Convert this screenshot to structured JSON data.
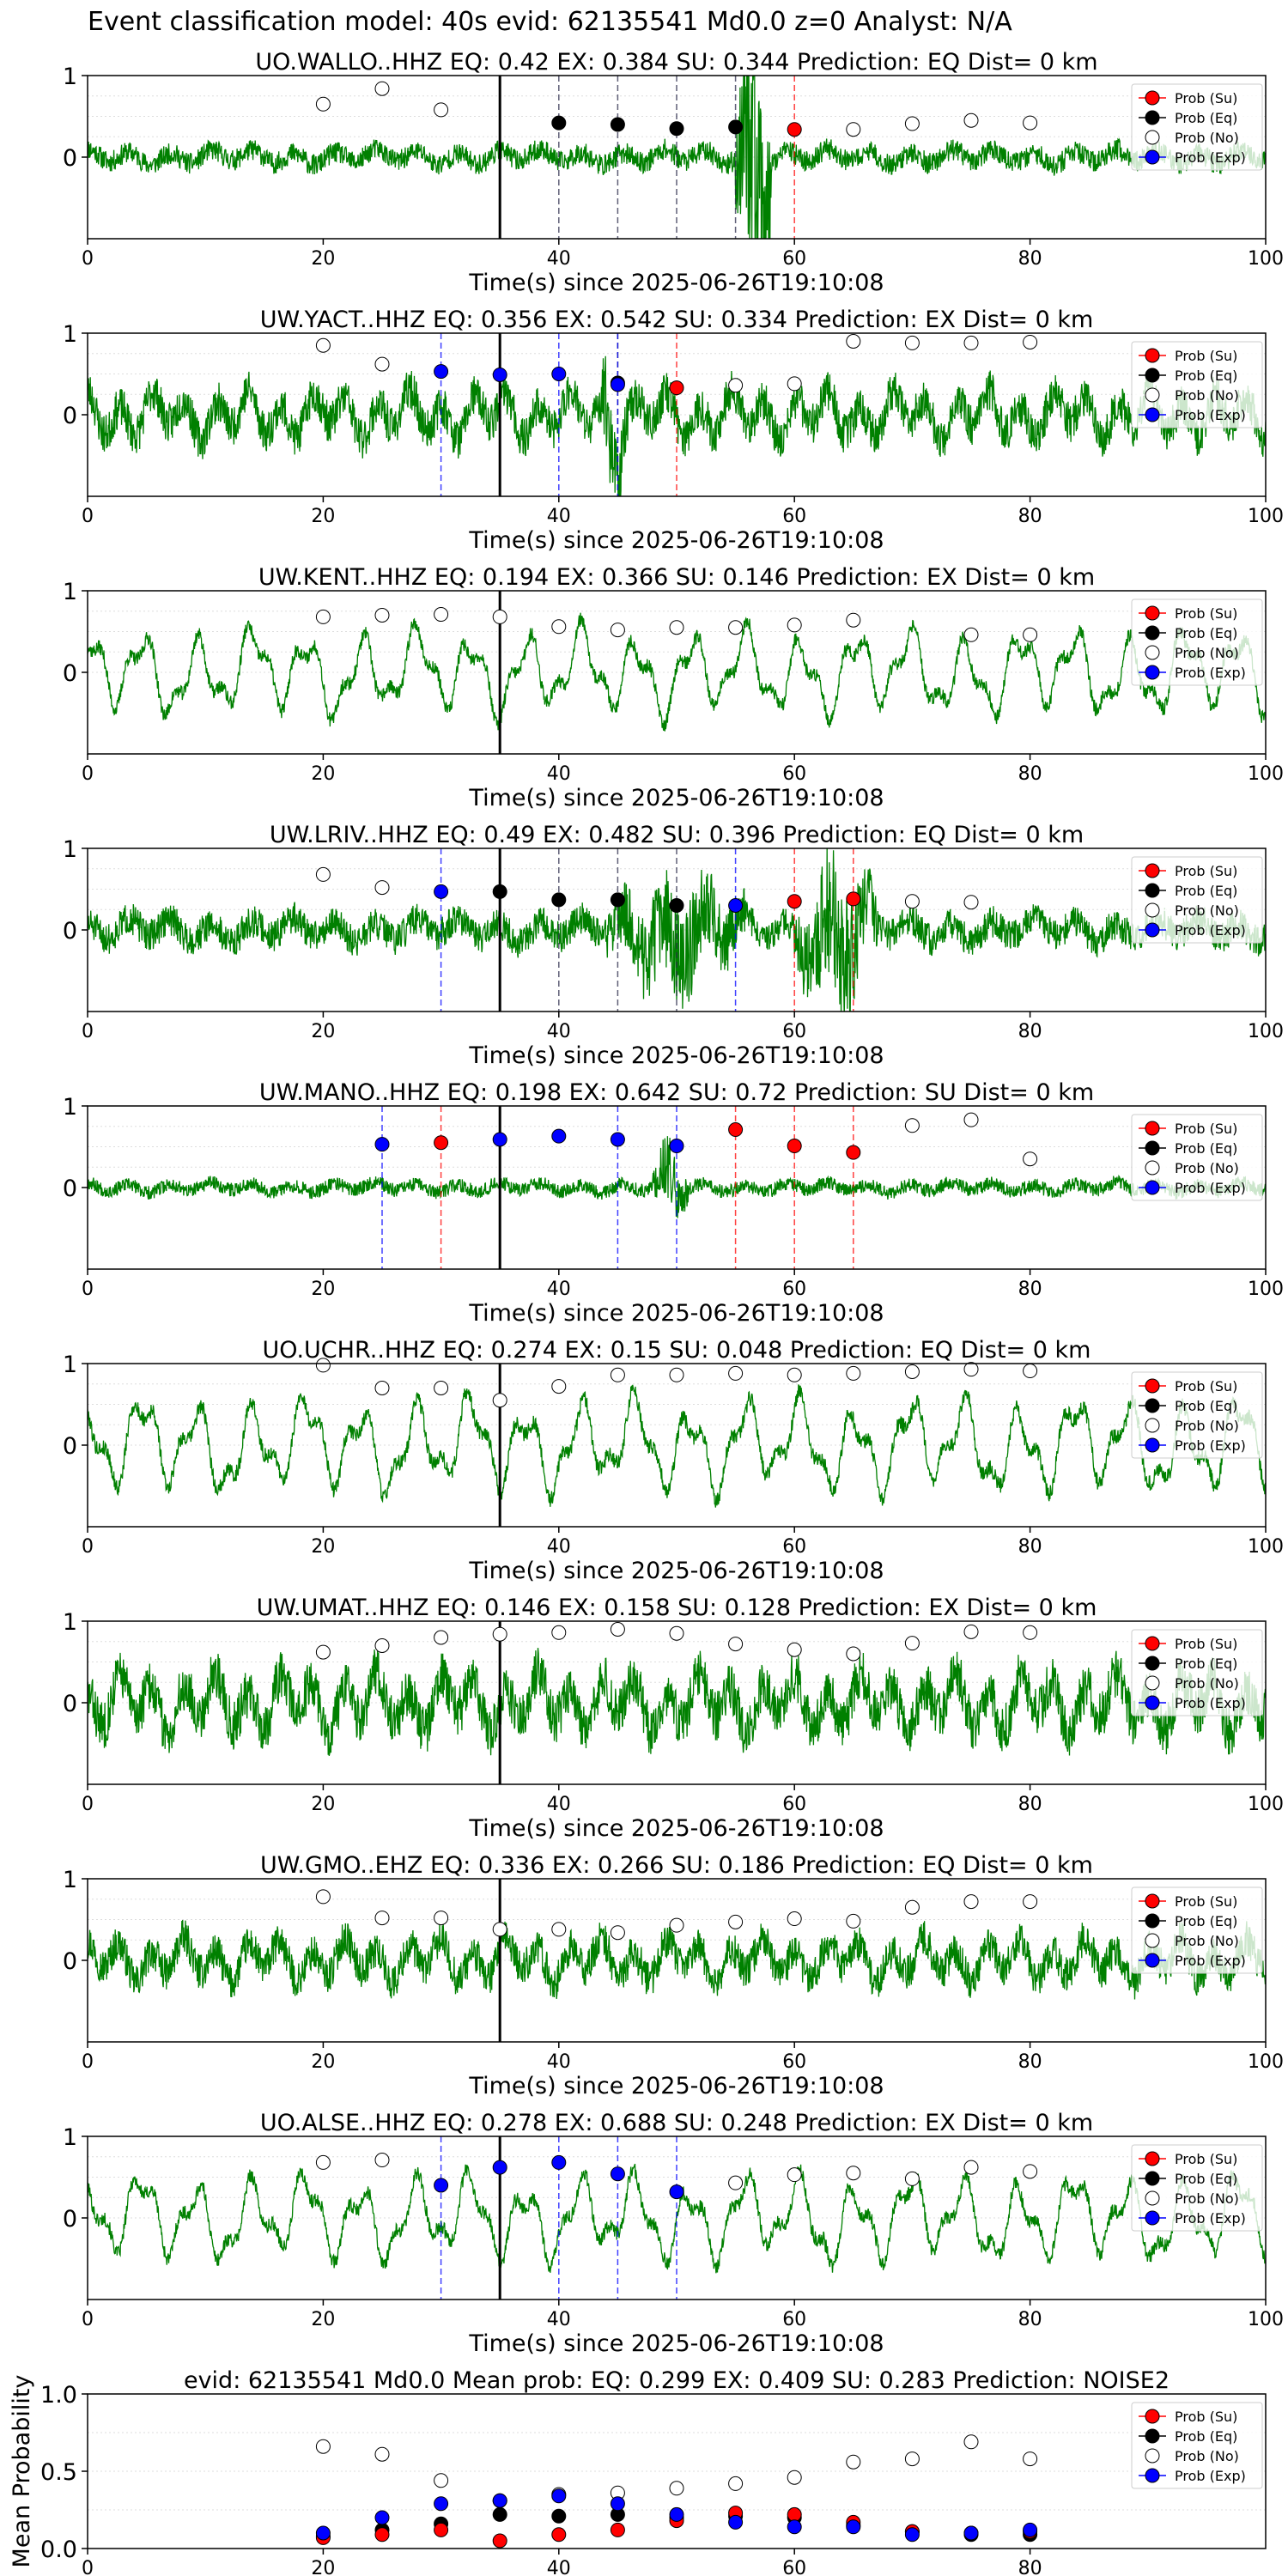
{
  "page": {
    "title": "Event classification model: 40s evid: 62135541 Md0.0 z=0 Analyst: N/A"
  },
  "colors": {
    "waveform": "#008000",
    "su": "#ff0000",
    "eq": "#000000",
    "no": "#ffffff",
    "exp": "#0000ff",
    "origin_line": "#000000",
    "grid": "#dddddd"
  },
  "legend_labels": [
    "Prob (Su)",
    "Prob (Eq)",
    "Prob (No)",
    "Prob (Exp)"
  ],
  "chart_data": [
    {
      "type": "line",
      "title": "UO.WALLO..HHZ   EQ: 0.42  EX: 0.384  SU: 0.344   Prediction: EQ    Dist= 0 km",
      "xlabel": "Time(s) since 2025-06-26T19:10:08",
      "xlim": [
        0,
        100
      ],
      "ylim": [
        -1,
        1
      ],
      "xticks": [
        "0",
        "20",
        "40",
        "60",
        "80",
        "100"
      ],
      "yticks": [
        "0",
        "1"
      ],
      "origin_time": 35,
      "waveform": {
        "style": "impulsive",
        "amp": 0.2,
        "bursts": [
          [
            55,
            58,
            2.5
          ]
        ],
        "seed": 11
      },
      "no": [
        [
          20,
          0.65
        ],
        [
          25,
          0.84
        ],
        [
          30,
          0.58
        ],
        [
          65,
          0.34
        ],
        [
          70,
          0.41
        ],
        [
          75,
          0.45
        ],
        [
          80,
          0.42
        ]
      ],
      "eq": [
        [
          40,
          0.42
        ],
        [
          45,
          0.4
        ],
        [
          50,
          0.35
        ],
        [
          55,
          0.37
        ]
      ],
      "su": [
        [
          60,
          0.34
        ]
      ],
      "exp": [],
      "eq_lines": [
        40,
        45,
        50,
        55
      ],
      "su_lines": [
        60
      ],
      "exp_lines": []
    },
    {
      "type": "line",
      "title": "UW.YACT..HHZ   EQ: 0.356  EX: 0.542  SU: 0.334   Prediction: EX    Dist= 0 km",
      "xlabel": "Time(s) since 2025-06-26T19:10:08",
      "xlim": [
        0,
        100
      ],
      "ylim": [
        -1,
        1
      ],
      "xticks": [
        "0",
        "20",
        "40",
        "60",
        "80",
        "100"
      ],
      "yticks": [
        "0",
        "1"
      ],
      "origin_time": 35,
      "waveform": {
        "style": "noisy",
        "amp": 0.45,
        "bursts": [
          [
            43,
            46,
            1.3
          ]
        ],
        "seed": 23
      },
      "no": [
        [
          20,
          0.85
        ],
        [
          25,
          0.62
        ],
        [
          55,
          0.36
        ],
        [
          60,
          0.38
        ],
        [
          65,
          0.9
        ],
        [
          70,
          0.88
        ],
        [
          75,
          0.88
        ],
        [
          80,
          0.89
        ]
      ],
      "eq": [
        [
          45,
          0.39
        ]
      ],
      "su": [
        [
          50,
          0.33
        ]
      ],
      "exp": [
        [
          30,
          0.53
        ],
        [
          35,
          0.49
        ],
        [
          40,
          0.5
        ],
        [
          45,
          0.37
        ]
      ],
      "eq_lines": [
        45
      ],
      "su_lines": [
        50
      ],
      "exp_lines": [
        30,
        40,
        45
      ]
    },
    {
      "type": "line",
      "title": "UW.KENT..HHZ   EQ: 0.194  EX: 0.366  SU: 0.146   Prediction: EX    Dist= 0 km",
      "xlabel": "Time(s) since 2025-06-26T19:10:08",
      "xlim": [
        0,
        100
      ],
      "ylim": [
        -1,
        1
      ],
      "xticks": [
        "0",
        "20",
        "40",
        "60",
        "80",
        "100"
      ],
      "yticks": [
        "0",
        "1"
      ],
      "origin_time": 35,
      "waveform": {
        "style": "oscillatory",
        "amp": 0.5,
        "bursts": [],
        "seed": 37
      },
      "no": [
        [
          20,
          0.68
        ],
        [
          25,
          0.7
        ],
        [
          30,
          0.71
        ],
        [
          35,
          0.68
        ],
        [
          40,
          0.56
        ],
        [
          45,
          0.52
        ],
        [
          50,
          0.55
        ],
        [
          55,
          0.55
        ],
        [
          60,
          0.58
        ],
        [
          65,
          0.64
        ],
        [
          75,
          0.46
        ],
        [
          80,
          0.46
        ]
      ],
      "eq": [],
      "su": [],
      "exp": [],
      "eq_lines": [],
      "su_lines": [],
      "exp_lines": []
    },
    {
      "type": "line",
      "title": "UW.LRIV..HHZ   EQ: 0.49  EX: 0.482  SU: 0.396   Prediction: EQ    Dist= 0 km",
      "xlabel": "Time(s) since 2025-06-26T19:10:08",
      "xlim": [
        0,
        100
      ],
      "ylim": [
        -1,
        1
      ],
      "xticks": [
        "0",
        "20",
        "40",
        "60",
        "80",
        "100"
      ],
      "yticks": [
        "0",
        "1"
      ],
      "origin_time": 35,
      "waveform": {
        "style": "impulsive",
        "amp": 0.3,
        "bursts": [
          [
            44,
            56,
            1.1
          ],
          [
            60,
            67,
            1.4
          ]
        ],
        "seed": 51
      },
      "no": [
        [
          20,
          0.68
        ],
        [
          25,
          0.52
        ],
        [
          70,
          0.35
        ],
        [
          75,
          0.34
        ]
      ],
      "eq": [
        [
          35,
          0.47
        ],
        [
          40,
          0.37
        ],
        [
          45,
          0.37
        ],
        [
          50,
          0.3
        ]
      ],
      "su": [
        [
          60,
          0.35
        ],
        [
          65,
          0.38
        ]
      ],
      "exp": [
        [
          30,
          0.47
        ],
        [
          55,
          0.3
        ]
      ],
      "eq_lines": [
        40,
        45,
        50
      ],
      "su_lines": [
        60,
        65
      ],
      "exp_lines": [
        30,
        55
      ]
    },
    {
      "type": "line",
      "title": "UW.MANO..HHZ   EQ: 0.198  EX: 0.642  SU: 0.72   Prediction: SU    Dist= 0 km",
      "xlabel": "Time(s) since 2025-06-26T19:10:08",
      "xlim": [
        0,
        100
      ],
      "ylim": [
        -1,
        1
      ],
      "xticks": [
        "0",
        "20",
        "40",
        "60",
        "80",
        "100"
      ],
      "yticks": [
        "0",
        "1"
      ],
      "origin_time": 35,
      "waveform": {
        "style": "impulsive",
        "amp": 0.13,
        "bursts": [
          [
            48,
            51,
            0.7
          ]
        ],
        "seed": 67
      },
      "no": [
        [
          70,
          0.76
        ],
        [
          75,
          0.83
        ],
        [
          80,
          0.35
        ]
      ],
      "eq": [],
      "su": [
        [
          30,
          0.55
        ],
        [
          55,
          0.71
        ],
        [
          60,
          0.51
        ],
        [
          65,
          0.43
        ]
      ],
      "exp": [
        [
          25,
          0.53
        ],
        [
          35,
          0.59
        ],
        [
          40,
          0.63
        ],
        [
          45,
          0.59
        ],
        [
          50,
          0.51
        ]
      ],
      "eq_lines": [],
      "su_lines": [
        30,
        55,
        60,
        65
      ],
      "exp_lines": [
        25,
        45,
        50
      ]
    },
    {
      "type": "line",
      "title": "UO.UCHR..HHZ   EQ: 0.274  EX: 0.15  SU: 0.048   Prediction: EQ    Dist= 0 km",
      "xlabel": "Time(s) since 2025-06-26T19:10:08",
      "xlim": [
        0,
        100
      ],
      "ylim": [
        -1,
        1
      ],
      "xticks": [
        "0",
        "20",
        "40",
        "60",
        "80",
        "100"
      ],
      "yticks": [
        "0",
        "1"
      ],
      "origin_time": 35,
      "waveform": {
        "style": "oscillatory",
        "amp": 0.55,
        "bursts": [],
        "seed": 79
      },
      "no": [
        [
          20,
          0.98
        ],
        [
          25,
          0.7
        ],
        [
          30,
          0.7
        ],
        [
          35,
          0.55
        ],
        [
          40,
          0.72
        ],
        [
          45,
          0.86
        ],
        [
          50,
          0.86
        ],
        [
          55,
          0.88
        ],
        [
          60,
          0.86
        ],
        [
          65,
          0.88
        ],
        [
          70,
          0.9
        ],
        [
          75,
          0.93
        ],
        [
          80,
          0.91
        ]
      ],
      "eq": [],
      "su": [],
      "exp": [],
      "eq_lines": [],
      "su_lines": [],
      "exp_lines": []
    },
    {
      "type": "line",
      "title": "UW.UMAT..HHZ   EQ: 0.146  EX: 0.158  SU: 0.128   Prediction: EX    Dist= 0 km",
      "xlabel": "Time(s) since 2025-06-26T19:10:08",
      "xlim": [
        0,
        100
      ],
      "ylim": [
        -1,
        1
      ],
      "xticks": [
        "0",
        "20",
        "40",
        "60",
        "80",
        "100"
      ],
      "yticks": [
        "0",
        "1"
      ],
      "origin_time": 35,
      "waveform": {
        "style": "noisy",
        "amp": 0.55,
        "bursts": [],
        "seed": 83
      },
      "no": [
        [
          20,
          0.62
        ],
        [
          25,
          0.7
        ],
        [
          30,
          0.8
        ],
        [
          35,
          0.84
        ],
        [
          40,
          0.86
        ],
        [
          45,
          0.9
        ],
        [
          50,
          0.85
        ],
        [
          55,
          0.72
        ],
        [
          60,
          0.65
        ],
        [
          65,
          0.6
        ],
        [
          70,
          0.73
        ],
        [
          75,
          0.87
        ],
        [
          80,
          0.86
        ]
      ],
      "eq": [],
      "su": [],
      "exp": [],
      "eq_lines": [],
      "su_lines": [],
      "exp_lines": []
    },
    {
      "type": "line",
      "title": "UW.GMO..EHZ   EQ: 0.336  EX: 0.266  SU: 0.186   Prediction: EQ    Dist= 0 km",
      "xlabel": "Time(s) since 2025-06-26T19:10:08",
      "xlim": [
        0,
        100
      ],
      "ylim": [
        -1,
        1
      ],
      "xticks": [
        "0",
        "20",
        "40",
        "60",
        "80",
        "100"
      ],
      "yticks": [
        "0",
        "1"
      ],
      "origin_time": 35,
      "waveform": {
        "style": "noisy",
        "amp": 0.4,
        "bursts": [],
        "seed": 97
      },
      "no": [
        [
          20,
          0.78
        ],
        [
          25,
          0.52
        ],
        [
          30,
          0.52
        ],
        [
          35,
          0.38
        ],
        [
          40,
          0.38
        ],
        [
          45,
          0.34
        ],
        [
          50,
          0.43
        ],
        [
          55,
          0.47
        ],
        [
          60,
          0.51
        ],
        [
          65,
          0.48
        ],
        [
          70,
          0.65
        ],
        [
          75,
          0.72
        ],
        [
          80,
          0.72
        ]
      ],
      "eq": [],
      "su": [],
      "exp": [],
      "eq_lines": [],
      "su_lines": [],
      "exp_lines": []
    },
    {
      "type": "line",
      "title": "UO.ALSE..HHZ   EQ: 0.278  EX: 0.688  SU: 0.248   Prediction: EX    Dist= 0 km",
      "xlabel": "Time(s) since 2025-06-26T19:10:08",
      "xlim": [
        0,
        100
      ],
      "ylim": [
        -1,
        1
      ],
      "xticks": [
        "0",
        "20",
        "40",
        "60",
        "80",
        "100"
      ],
      "yticks": [
        "0",
        "1"
      ],
      "origin_time": 35,
      "waveform": {
        "style": "oscillatory",
        "amp": 0.5,
        "bursts": [
          [
            55,
            70,
            0.6
          ]
        ],
        "seed": 101
      },
      "no": [
        [
          20,
          0.68
        ],
        [
          25,
          0.71
        ],
        [
          55,
          0.43
        ],
        [
          60,
          0.53
        ],
        [
          65,
          0.55
        ],
        [
          70,
          0.48
        ],
        [
          75,
          0.62
        ],
        [
          80,
          0.57
        ]
      ],
      "eq": [],
      "su": [],
      "exp": [
        [
          30,
          0.4
        ],
        [
          35,
          0.62
        ],
        [
          40,
          0.68
        ],
        [
          45,
          0.54
        ],
        [
          50,
          0.32
        ]
      ],
      "eq_lines": [],
      "su_lines": [],
      "exp_lines": [
        30,
        40,
        45,
        50
      ]
    },
    {
      "type": "scatter",
      "title": "evid: 62135541  Md0.0   Mean prob:    EQ: 0.299  EX: 0.409  SU: 0.283   Prediction: NOISE2",
      "ylabel": "Mean Probability",
      "xlim": [
        0,
        100
      ],
      "ylim": [
        0,
        1
      ],
      "xticks": [
        "0",
        "20",
        "40",
        "60",
        "80"
      ],
      "yticks": [
        "0.0",
        "0.5",
        "1.0"
      ],
      "no": [
        [
          20,
          0.66
        ],
        [
          25,
          0.61
        ],
        [
          30,
          0.44
        ],
        [
          35,
          0.31
        ],
        [
          40,
          0.35
        ],
        [
          45,
          0.36
        ],
        [
          50,
          0.39
        ],
        [
          55,
          0.42
        ],
        [
          60,
          0.46
        ],
        [
          65,
          0.56
        ],
        [
          70,
          0.58
        ],
        [
          75,
          0.69
        ],
        [
          80,
          0.58
        ]
      ],
      "eq": [
        [
          20,
          0.08
        ],
        [
          25,
          0.12
        ],
        [
          30,
          0.16
        ],
        [
          35,
          0.22
        ],
        [
          40,
          0.21
        ],
        [
          45,
          0.22
        ],
        [
          50,
          0.2
        ],
        [
          55,
          0.21
        ],
        [
          60,
          0.2
        ],
        [
          65,
          0.15
        ],
        [
          70,
          0.11
        ],
        [
          75,
          0.09
        ],
        [
          80,
          0.09
        ]
      ],
      "su": [
        [
          20,
          0.07
        ],
        [
          25,
          0.09
        ],
        [
          30,
          0.12
        ],
        [
          35,
          0.05
        ],
        [
          40,
          0.09
        ],
        [
          45,
          0.12
        ],
        [
          50,
          0.18
        ],
        [
          55,
          0.23
        ],
        [
          60,
          0.22
        ],
        [
          65,
          0.17
        ],
        [
          70,
          0.11
        ],
        [
          75,
          0.1
        ],
        [
          80,
          0.11
        ]
      ],
      "exp": [
        [
          20,
          0.1
        ],
        [
          25,
          0.2
        ],
        [
          30,
          0.29
        ],
        [
          35,
          0.31
        ],
        [
          40,
          0.34
        ],
        [
          45,
          0.29
        ],
        [
          50,
          0.22
        ],
        [
          55,
          0.17
        ],
        [
          60,
          0.14
        ],
        [
          65,
          0.14
        ],
        [
          70,
          0.09
        ],
        [
          75,
          0.1
        ],
        [
          80,
          0.12
        ]
      ]
    }
  ]
}
